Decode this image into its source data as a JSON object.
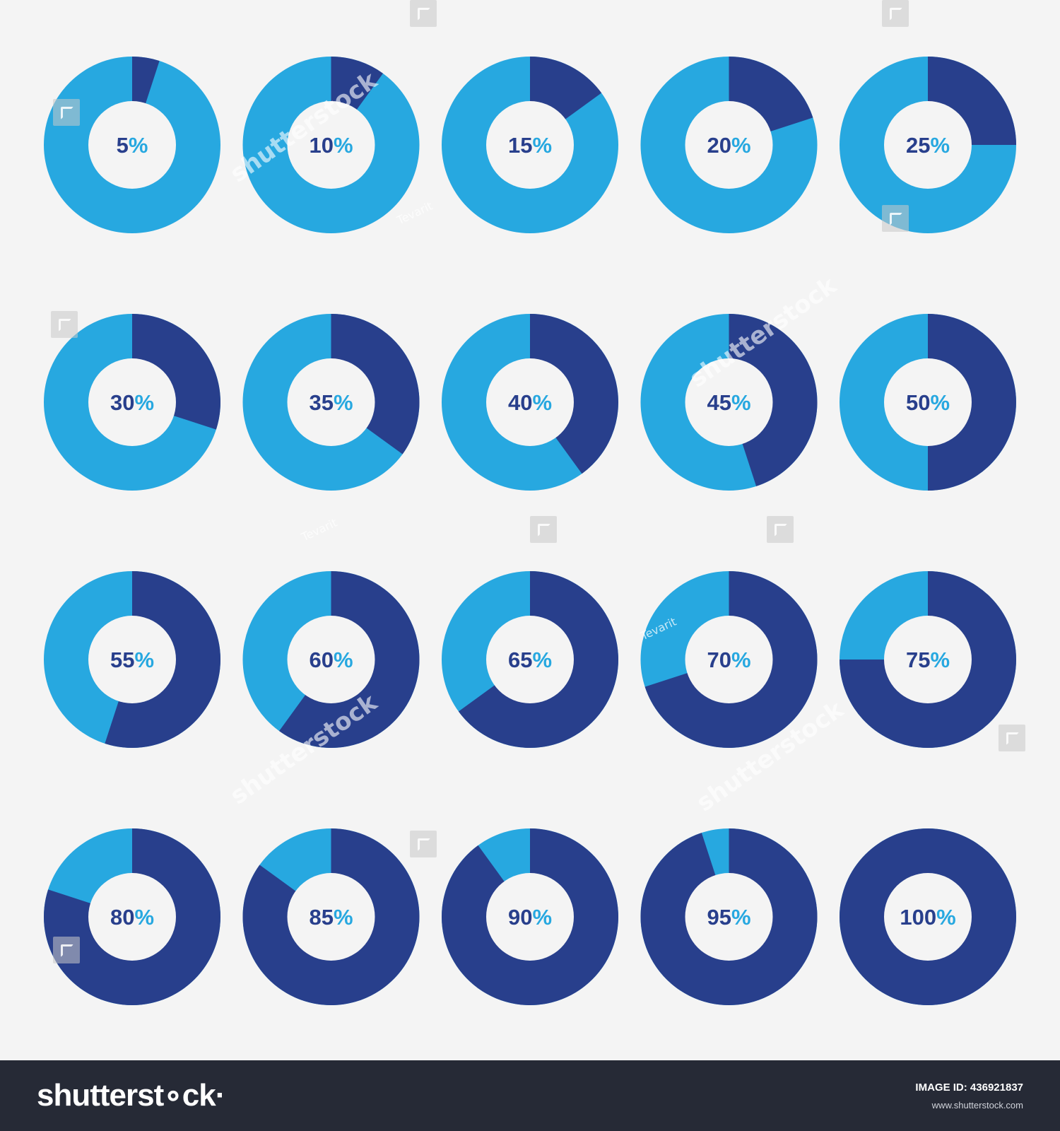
{
  "colors": {
    "filled": "#283f8c",
    "remainder": "#27a8e0",
    "hole": "#f4f4f4",
    "label_number": "#283f8c",
    "label_percent": "#27a8e0",
    "background": "#f4f4f4",
    "footer": "#262a36"
  },
  "chart_data": {
    "type": "donut-grid",
    "title": "",
    "layout": "5 columns x 4 rows",
    "unit": "%",
    "values": [
      5,
      10,
      15,
      20,
      25,
      30,
      35,
      40,
      45,
      50,
      55,
      60,
      65,
      70,
      75,
      80,
      85,
      90,
      95,
      100
    ],
    "labels": [
      "5",
      "10",
      "15",
      "20",
      "25",
      "30",
      "35",
      "40",
      "45",
      "50",
      "55",
      "60",
      "65",
      "70",
      "75",
      "80",
      "85",
      "90",
      "95",
      "100"
    ]
  },
  "watermark": {
    "brand": "shutterstock",
    "author": "Tevarit"
  },
  "footer": {
    "logo_text": "shutterst∘ck·",
    "image_id": "IMAGE ID: 436921837",
    "url": "www.shutterstock.com"
  }
}
